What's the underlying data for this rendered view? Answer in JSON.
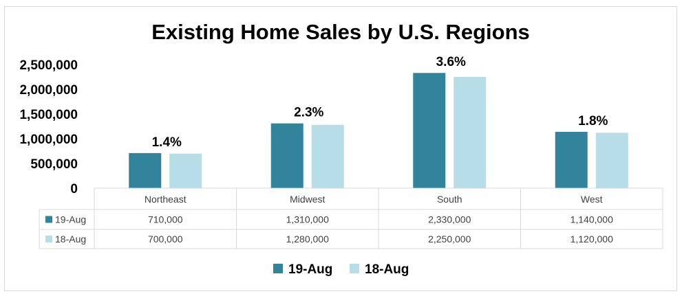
{
  "chart_data": {
    "type": "bar",
    "title": "Existing Home Sales by U.S. Regions",
    "categories": [
      "Northeast",
      "Midwest",
      "South",
      "West"
    ],
    "series": [
      {
        "name": "19-Aug",
        "values": [
          710000,
          1310000,
          2330000,
          1140000
        ],
        "color": "#31849B"
      },
      {
        "name": "18-Aug",
        "values": [
          700000,
          1280000,
          2250000,
          1120000
        ],
        "color": "#B7DEE8"
      }
    ],
    "data_table": [
      [
        "710,000",
        "1,310,000",
        "2,330,000",
        "1,140,000"
      ],
      [
        "700,000",
        "1,280,000",
        "2,250,000",
        "1,120,000"
      ]
    ],
    "growth_labels": [
      "1.4%",
      "2.3%",
      "3.6%",
      "1.8%"
    ],
    "yticks": [
      0,
      500000,
      1000000,
      1500000,
      2000000,
      2500000
    ],
    "ytick_labels": [
      "0",
      "500,000",
      "1,000,000",
      "1,500,000",
      "2,000,000",
      "2,500,000"
    ],
    "ylim": [
      0,
      2500000
    ],
    "xlabel": "",
    "ylabel": "",
    "grid": false,
    "legend_position": "bottom"
  }
}
